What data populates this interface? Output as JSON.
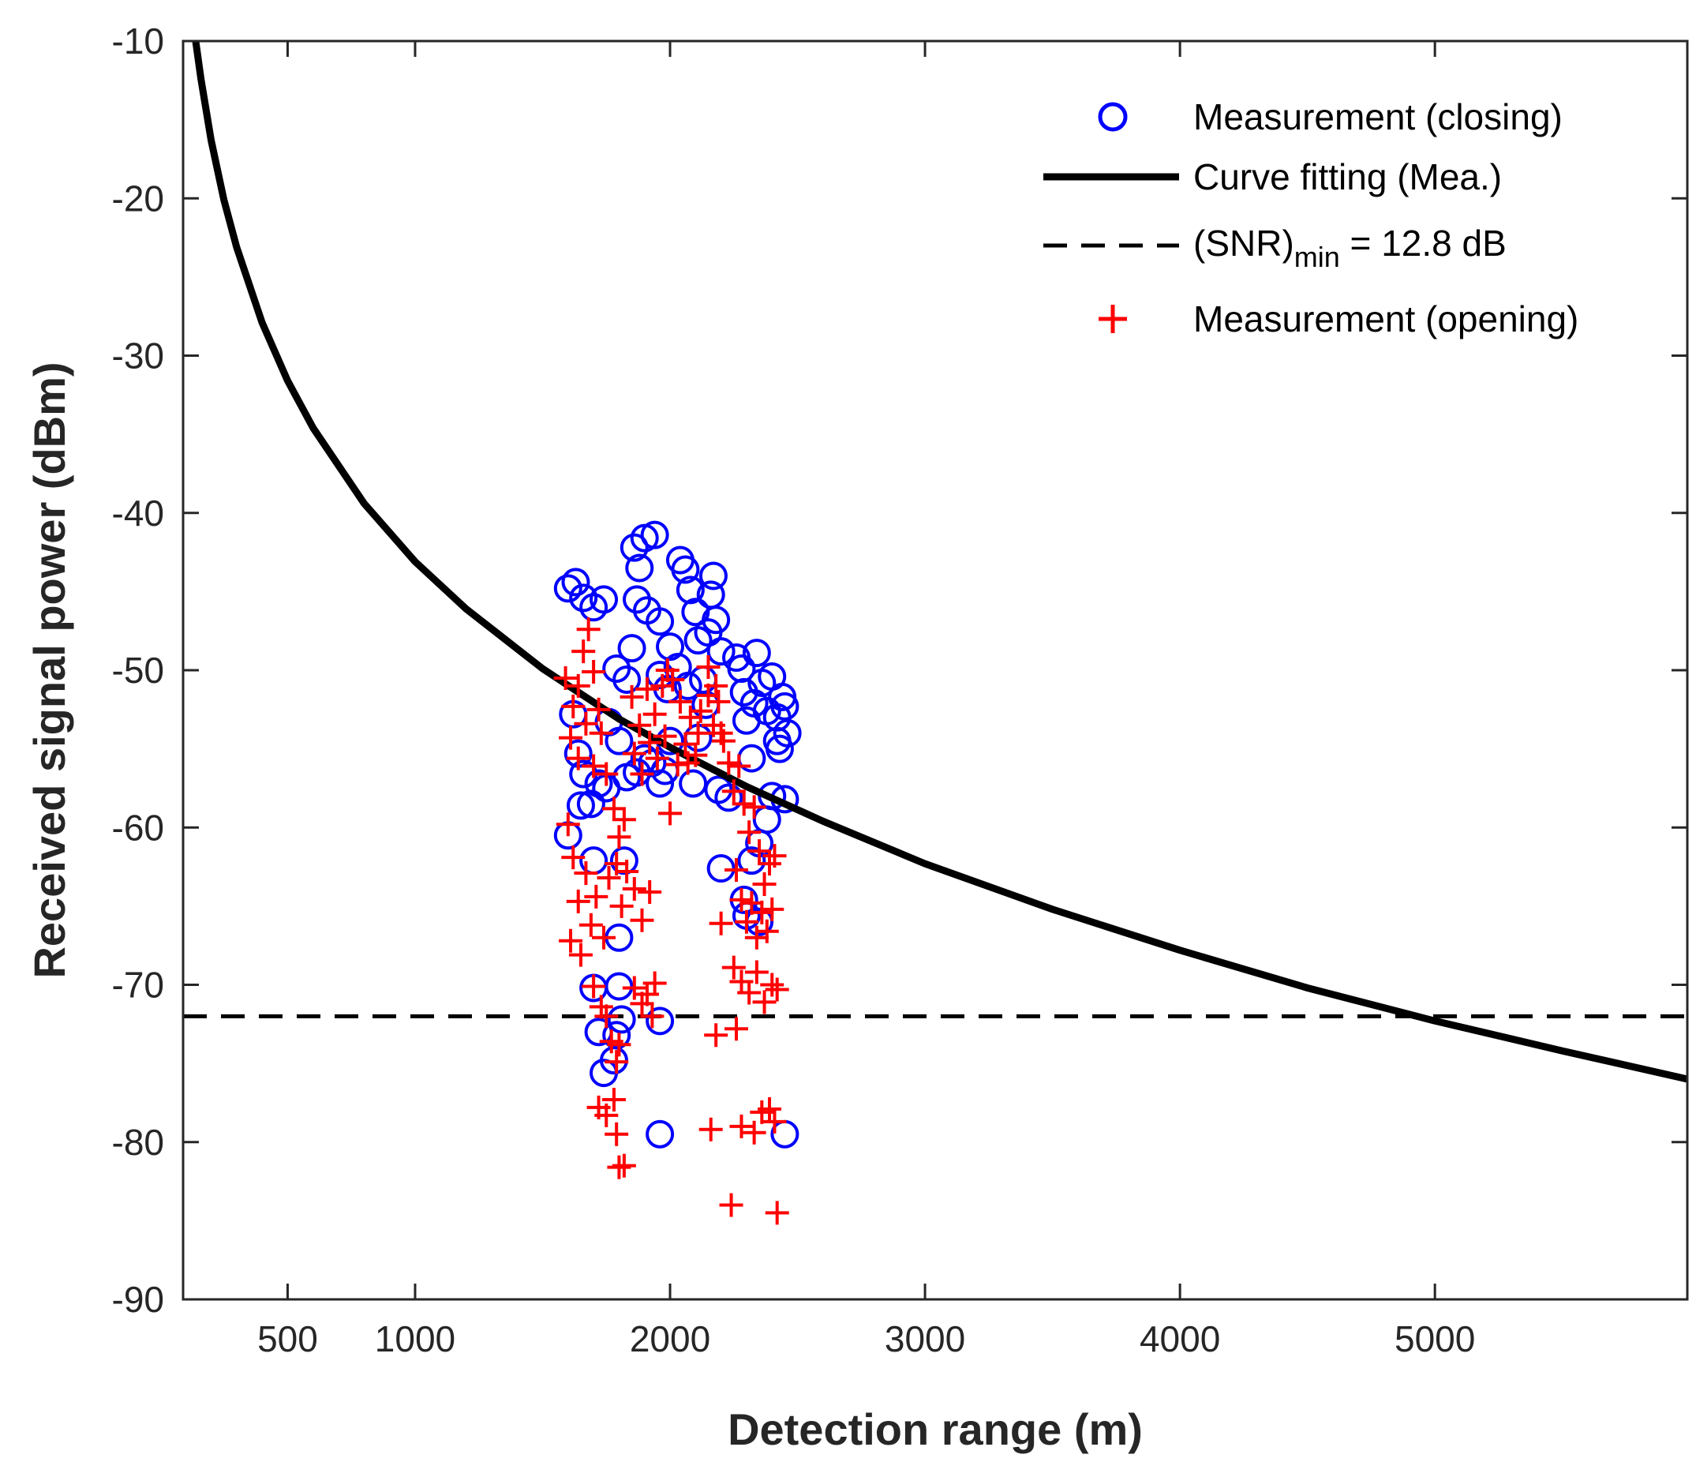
{
  "chart_data": {
    "type": "scatter",
    "xlabel": "Detection range (m)",
    "ylabel": "Received signal power (dBm)",
    "xlim": [
      90,
      5990
    ],
    "ylim": [
      -90,
      -10
    ],
    "x_ticks": [
      500,
      1000,
      2000,
      3000,
      4000,
      5000
    ],
    "x_tick_labels": [
      "500",
      "1000",
      "2000",
      "3000",
      "4000",
      "5000"
    ],
    "y_ticks": [
      -10,
      -20,
      -30,
      -40,
      -50,
      -60,
      -70,
      -80,
      -90
    ],
    "y_tick_labels": [
      "-10",
      "-20",
      "-30",
      "-40",
      "-50",
      "-60",
      "-70",
      "-80",
      "-90"
    ],
    "grid": false,
    "legend_position": "top-right",
    "legend": {
      "closing": "Measurement (closing)",
      "fit": "Curve fitting (Mea.)",
      "snr_prefix": "(SNR)",
      "snr_sub": "min",
      "snr_suffix": " = 12.8 dB",
      "opening": "Measurement (opening)"
    },
    "colors": {
      "closing": "#0000ff",
      "opening": "#ff0000",
      "fit": "#000000",
      "snr": "#000000"
    },
    "snr_threshold_dbm": -72,
    "fit_curve": {
      "name": "Curve fitting (Mea.)",
      "x": [
        130,
        160,
        200,
        250,
        300,
        400,
        500,
        600,
        800,
        1000,
        1200,
        1500,
        1800,
        2000,
        2300,
        2600,
        3000,
        3500,
        4000,
        4500,
        5000,
        5500,
        5990
      ],
      "y": [
        -8.9,
        -12.4,
        -16.3,
        -20.1,
        -23.1,
        -27.9,
        -31.6,
        -34.6,
        -39.4,
        -43.1,
        -46.1,
        -49.9,
        -53.1,
        -54.9,
        -57.4,
        -59.6,
        -62.3,
        -65.2,
        -67.8,
        -70.2,
        -72.3,
        -74.2,
        -76.0
      ]
    },
    "series": [
      {
        "name": "Measurement (closing)",
        "marker": "circle",
        "points": [
          [
            1600,
            -44.8
          ],
          [
            1630,
            -44.4
          ],
          [
            1660,
            -45.4
          ],
          [
            1700,
            -46.0
          ],
          [
            1740,
            -45.5
          ],
          [
            1620,
            -52.8
          ],
          [
            1640,
            -55.3
          ],
          [
            1660,
            -56.6
          ],
          [
            1690,
            -58.5
          ],
          [
            1720,
            -57.2
          ],
          [
            1600,
            -60.5
          ],
          [
            1650,
            -58.6
          ],
          [
            1700,
            -62.1
          ],
          [
            1750,
            -57.5
          ],
          [
            1700,
            -70.2
          ],
          [
            1720,
            -73.0
          ],
          [
            1740,
            -75.6
          ],
          [
            1780,
            -74.8
          ],
          [
            1790,
            -73.2
          ],
          [
            1800,
            -70.1
          ],
          [
            1810,
            -72.2
          ],
          [
            1800,
            -67.0
          ],
          [
            1820,
            -62.1
          ],
          [
            1860,
            -42.2
          ],
          [
            1900,
            -41.6
          ],
          [
            1940,
            -41.4
          ],
          [
            1880,
            -43.5
          ],
          [
            1870,
            -45.5
          ],
          [
            1910,
            -46.2
          ],
          [
            1960,
            -46.9
          ],
          [
            1850,
            -48.6
          ],
          [
            1830,
            -50.6
          ],
          [
            1790,
            -49.9
          ],
          [
            1760,
            -53.3
          ],
          [
            1800,
            -54.5
          ],
          [
            1830,
            -56.8
          ],
          [
            1870,
            -56.5
          ],
          [
            1900,
            -55.6
          ],
          [
            1930,
            -55.9
          ],
          [
            1960,
            -57.2
          ],
          [
            1980,
            -56.4
          ],
          [
            2000,
            -54.5
          ],
          [
            2030,
            -49.8
          ],
          [
            2040,
            -43.0
          ],
          [
            2060,
            -43.6
          ],
          [
            2080,
            -44.9
          ],
          [
            2100,
            -46.3
          ],
          [
            2110,
            -48.1
          ],
          [
            2130,
            -50.6
          ],
          [
            2150,
            -47.6
          ],
          [
            2160,
            -45.2
          ],
          [
            2170,
            -44.0
          ],
          [
            2180,
            -46.8
          ],
          [
            2200,
            -48.8
          ],
          [
            2140,
            -52.2
          ],
          [
            2110,
            -54.3
          ],
          [
            2090,
            -57.2
          ],
          [
            2070,
            -51.0
          ],
          [
            2000,
            -48.5
          ],
          [
            1990,
            -51.2
          ],
          [
            1960,
            -50.3
          ],
          [
            1960,
            -72.3
          ],
          [
            1960,
            -79.5
          ],
          [
            2190,
            -57.6
          ],
          [
            2200,
            -62.6
          ],
          [
            2230,
            -58.1
          ],
          [
            2260,
            -49.2
          ],
          [
            2280,
            -49.9
          ],
          [
            2290,
            -51.4
          ],
          [
            2300,
            -53.2
          ],
          [
            2320,
            -55.6
          ],
          [
            2330,
            -52.1
          ],
          [
            2340,
            -48.9
          ],
          [
            2360,
            -50.8
          ],
          [
            2380,
            -52.6
          ],
          [
            2400,
            -50.4
          ],
          [
            2420,
            -53.0
          ],
          [
            2430,
            -55.0
          ],
          [
            2450,
            -52.3
          ],
          [
            2460,
            -54.0
          ],
          [
            2440,
            -51.7
          ],
          [
            2420,
            -54.5
          ],
          [
            2400,
            -58.0
          ],
          [
            2450,
            -58.2
          ],
          [
            2380,
            -59.5
          ],
          [
            2290,
            -64.6
          ],
          [
            2300,
            -65.6
          ],
          [
            2320,
            -62.1
          ],
          [
            2350,
            -66.0
          ],
          [
            2350,
            -61.0
          ],
          [
            2450,
            -79.5
          ]
        ]
      },
      {
        "name": "Measurement (opening)",
        "marker": "plus",
        "points": [
          [
            1590,
            -50.5
          ],
          [
            1620,
            -52.3
          ],
          [
            1640,
            -51.0
          ],
          [
            1660,
            -48.8
          ],
          [
            1680,
            -47.4
          ],
          [
            1700,
            -50.1
          ],
          [
            1720,
            -52.5
          ],
          [
            1610,
            -54.3
          ],
          [
            1640,
            -55.6
          ],
          [
            1670,
            -53.4
          ],
          [
            1700,
            -56.1
          ],
          [
            1730,
            -54.0
          ],
          [
            1750,
            -56.6
          ],
          [
            1600,
            -59.8
          ],
          [
            1620,
            -61.9
          ],
          [
            1640,
            -64.7
          ],
          [
            1670,
            -62.9
          ],
          [
            1690,
            -66.2
          ],
          [
            1710,
            -64.4
          ],
          [
            1740,
            -67.0
          ],
          [
            1760,
            -63.2
          ],
          [
            1610,
            -67.2
          ],
          [
            1650,
            -68.1
          ],
          [
            1700,
            -70.1
          ],
          [
            1730,
            -71.4
          ],
          [
            1750,
            -72.0
          ],
          [
            1770,
            -73.6
          ],
          [
            1790,
            -74.9
          ],
          [
            1800,
            -73.8
          ],
          [
            1720,
            -77.8
          ],
          [
            1750,
            -78.3
          ],
          [
            1780,
            -77.3
          ],
          [
            1790,
            -79.5
          ],
          [
            1800,
            -81.6
          ],
          [
            1820,
            -81.5
          ],
          [
            1780,
            -58.8
          ],
          [
            1800,
            -60.6
          ],
          [
            1820,
            -59.5
          ],
          [
            1790,
            -62.3
          ],
          [
            1810,
            -65.0
          ],
          [
            1830,
            -62.8
          ],
          [
            1850,
            -51.7
          ],
          [
            1880,
            -53.5
          ],
          [
            1910,
            -51.2
          ],
          [
            1940,
            -52.8
          ],
          [
            1970,
            -51.0
          ],
          [
            1990,
            -50.0
          ],
          [
            2010,
            -50.6
          ],
          [
            2040,
            -52.0
          ],
          [
            2060,
            -54.7
          ],
          [
            2080,
            -53.0
          ],
          [
            2100,
            -55.4
          ],
          [
            2120,
            -52.6
          ],
          [
            2150,
            -51.6
          ],
          [
            2170,
            -53.5
          ],
          [
            2190,
            -52.0
          ],
          [
            2210,
            -54.5
          ],
          [
            1860,
            -55.3
          ],
          [
            1890,
            -56.6
          ],
          [
            1920,
            -54.6
          ],
          [
            1950,
            -55.6
          ],
          [
            1980,
            -54.2
          ],
          [
            2030,
            -56.0
          ],
          [
            2070,
            -55.9
          ],
          [
            2110,
            -54.0
          ],
          [
            2150,
            -49.8
          ],
          [
            2180,
            -51.0
          ],
          [
            2200,
            -54.0
          ],
          [
            1860,
            -63.9
          ],
          [
            1890,
            -65.9
          ],
          [
            1920,
            -64.1
          ],
          [
            1860,
            -70.2
          ],
          [
            1890,
            -71.2
          ],
          [
            1910,
            -70.6
          ],
          [
            1940,
            -69.9
          ],
          [
            1930,
            -72.0
          ],
          [
            2000,
            -59.1
          ],
          [
            2230,
            -55.9
          ],
          [
            2250,
            -57.7
          ],
          [
            2270,
            -56.1
          ],
          [
            2290,
            -58.5
          ],
          [
            2310,
            -60.3
          ],
          [
            2330,
            -58.7
          ],
          [
            2350,
            -61.5
          ],
          [
            2370,
            -63.6
          ],
          [
            2390,
            -62.3
          ],
          [
            2410,
            -61.8
          ],
          [
            2260,
            -62.7
          ],
          [
            2280,
            -64.6
          ],
          [
            2300,
            -66.0
          ],
          [
            2320,
            -64.8
          ],
          [
            2340,
            -67.0
          ],
          [
            2360,
            -65.4
          ],
          [
            2380,
            -66.6
          ],
          [
            2400,
            -65.2
          ],
          [
            2250,
            -68.9
          ],
          [
            2280,
            -69.8
          ],
          [
            2310,
            -70.5
          ],
          [
            2340,
            -69.2
          ],
          [
            2370,
            -71.1
          ],
          [
            2400,
            -70.0
          ],
          [
            2420,
            -70.3
          ],
          [
            2180,
            -73.2
          ],
          [
            2260,
            -72.8
          ],
          [
            2200,
            -66.1
          ],
          [
            2160,
            -79.2
          ],
          [
            2280,
            -79.0
          ],
          [
            2330,
            -79.4
          ],
          [
            2360,
            -78.1
          ],
          [
            2390,
            -77.9
          ],
          [
            2410,
            -78.7
          ],
          [
            2240,
            -84.0
          ],
          [
            2420,
            -84.5
          ]
        ]
      }
    ]
  }
}
